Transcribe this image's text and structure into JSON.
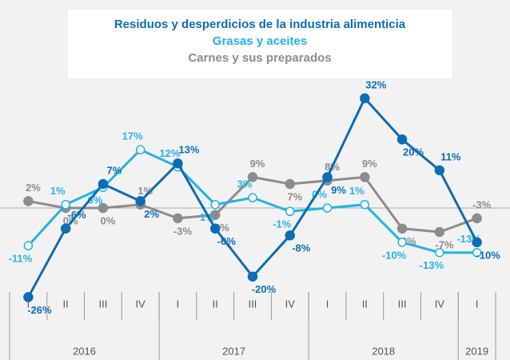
{
  "chart_data": {
    "type": "line",
    "categories": [
      "I",
      "II",
      "III",
      "IV",
      "I",
      "II",
      "III",
      "IV",
      "I",
      "II",
      "III",
      "IV",
      "I"
    ],
    "groups": [
      {
        "name": "2016",
        "count": 4
      },
      {
        "name": "2017",
        "count": 4
      },
      {
        "name": "2018",
        "count": 4
      },
      {
        "name": "2019",
        "count": 1
      }
    ],
    "series": [
      {
        "name": "Residuos y desperdicios de la industria alimenticia",
        "color": "#0b6db5",
        "values": [
          -26,
          -6,
          7,
          2,
          13,
          -6,
          -20,
          -8,
          9,
          32,
          20,
          11,
          -10
        ],
        "value_labels": [
          "-26%",
          "-6%",
          "7%",
          "2%",
          "13%",
          "-6%",
          "-20%",
          "-8%",
          "9%",
          "32%",
          "20%",
          "11%",
          "-10%"
        ]
      },
      {
        "name": "Grasas y aceites",
        "color": "#22b3e6",
        "values": [
          -11,
          1,
          6,
          17,
          12,
          1,
          3,
          -1,
          0,
          1,
          -10,
          -13,
          -13
        ],
        "value_labels": [
          "-11%",
          "1%",
          "6%",
          "17%",
          "12%",
          "1%",
          "3%",
          "-1%",
          "0%",
          "1%",
          "-10%",
          "-13%",
          "-13%"
        ]
      },
      {
        "name": "Carnes y sus preparados",
        "color": "#8c8c8c",
        "values": [
          2,
          0,
          0,
          1,
          -3,
          -2,
          9,
          7,
          8,
          9,
          -6,
          -7,
          -3
        ],
        "value_labels": [
          "2%",
          "0%",
          "0%",
          "1%",
          "-3%",
          "-2%",
          "9%",
          "7%",
          "8%",
          "9%",
          "-6%",
          "-7%",
          "-3%"
        ]
      }
    ],
    "ylim": [
      -28,
      35
    ]
  }
}
